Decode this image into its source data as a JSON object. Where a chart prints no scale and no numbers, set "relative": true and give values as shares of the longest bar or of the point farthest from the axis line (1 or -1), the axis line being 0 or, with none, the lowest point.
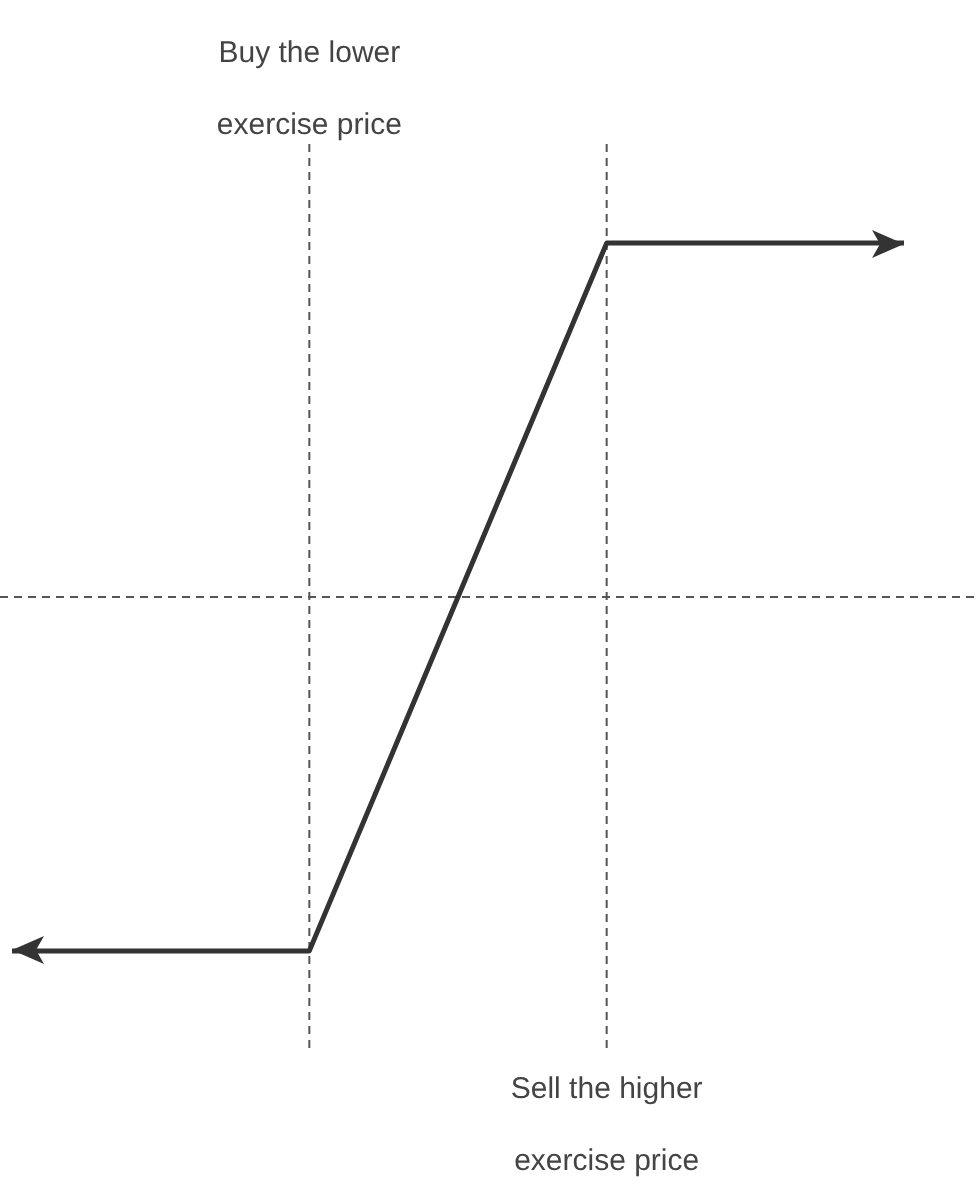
{
  "chart_data": {
    "type": "line",
    "categories": [
      null,
      null,
      null,
      null
    ],
    "values": [
      -1,
      -1,
      1,
      1
    ],
    "color": "#333333",
    "relative": true,
    "ref_lines": [
      {
        "axis": "y",
        "value": 0,
        "color": "#555555",
        "line_style": "dashed"
      }
    ],
    "annotations": [
      "Buy the lower exercise price",
      "Sell the higher exercise price"
    ]
  }
}
